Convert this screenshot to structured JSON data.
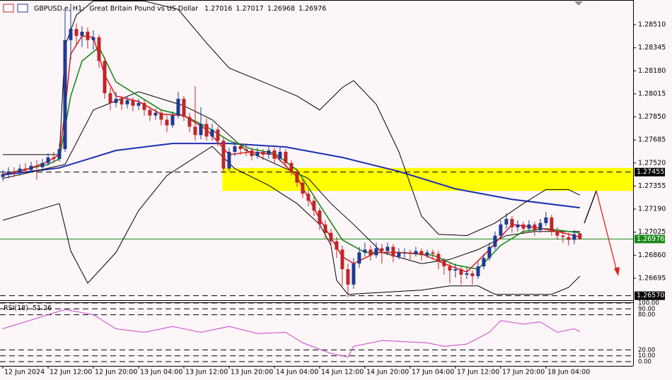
{
  "chart_data": {
    "type": "candlestick",
    "symbol": "GBPUSD.e, H1:",
    "description": "Great Britain Pound vs US Dollar",
    "bull_color": "#1f3a93",
    "bear_color": "#c0262a",
    "candles": [
      [
        1.2742,
        1.2747,
        1.2739,
        1.2744
      ],
      [
        1.2744,
        1.2749,
        1.2741,
        1.2746
      ],
      [
        1.2746,
        1.2749,
        1.2742,
        1.2745
      ],
      [
        1.2745,
        1.2751,
        1.2743,
        1.2748
      ],
      [
        1.2748,
        1.2752,
        1.2744,
        1.2747
      ],
      [
        1.2747,
        1.2753,
        1.2745,
        1.275
      ],
      [
        1.275,
        1.2754,
        1.274,
        1.2749
      ],
      [
        1.2749,
        1.2755,
        1.2746,
        1.2752
      ],
      [
        1.2752,
        1.2759,
        1.275,
        1.2756
      ],
      [
        1.2756,
        1.276,
        1.2752,
        1.2755
      ],
      [
        1.2755,
        1.2766,
        1.2753,
        1.2762
      ],
      [
        1.2762,
        1.2862,
        1.276,
        1.284
      ],
      [
        1.284,
        1.2866,
        1.2826,
        1.2848
      ],
      [
        1.2848,
        1.2852,
        1.2836,
        1.2843
      ],
      [
        1.2843,
        1.285,
        1.2835,
        1.2846
      ],
      [
        1.2846,
        1.2849,
        1.2834,
        1.284
      ],
      [
        1.284,
        1.2847,
        1.2833,
        1.2842
      ],
      [
        1.2842,
        1.2844,
        1.282,
        1.2825
      ],
      [
        1.2825,
        1.2828,
        1.2798,
        1.2802
      ],
      [
        1.2802,
        1.2806,
        1.279,
        1.2795
      ],
      [
        1.2795,
        1.2803,
        1.2792,
        1.2798
      ],
      [
        1.2798,
        1.28,
        1.279,
        1.2794
      ],
      [
        1.2794,
        1.28,
        1.2791,
        1.2797
      ],
      [
        1.2797,
        1.2799,
        1.2789,
        1.2793
      ],
      [
        1.2793,
        1.2798,
        1.279,
        1.2795
      ],
      [
        1.2795,
        1.2797,
        1.2786,
        1.279
      ],
      [
        1.279,
        1.2792,
        1.2782,
        1.2786
      ],
      [
        1.2786,
        1.2791,
        1.2783,
        1.2788
      ],
      [
        1.2788,
        1.279,
        1.2779,
        1.2783
      ],
      [
        1.2783,
        1.2786,
        1.2774,
        1.2779
      ],
      [
        1.2779,
        1.2789,
        1.2777,
        1.2786
      ],
      [
        1.2786,
        1.2803,
        1.2784,
        1.2798
      ],
      [
        1.2798,
        1.28,
        1.2782,
        1.2785
      ],
      [
        1.2785,
        1.2788,
        1.2774,
        1.2778
      ],
      [
        1.2778,
        1.2807,
        1.2768,
        1.2772
      ],
      [
        1.2772,
        1.2792,
        1.2769,
        1.278
      ],
      [
        1.278,
        1.2784,
        1.2768,
        1.2771
      ],
      [
        1.2771,
        1.278,
        1.2768,
        1.2776
      ],
      [
        1.2776,
        1.2778,
        1.2764,
        1.2768
      ],
      [
        1.2768,
        1.277,
        1.2745,
        1.2748
      ],
      [
        1.2748,
        1.2763,
        1.2746,
        1.276
      ],
      [
        1.276,
        1.2767,
        1.2757,
        1.2764
      ],
      [
        1.2764,
        1.2766,
        1.2758,
        1.2762
      ],
      [
        1.2762,
        1.2765,
        1.2757,
        1.2761
      ],
      [
        1.2761,
        1.2763,
        1.2754,
        1.2757
      ],
      [
        1.2757,
        1.2763,
        1.2755,
        1.276
      ],
      [
        1.276,
        1.2762,
        1.2754,
        1.2758
      ],
      [
        1.2758,
        1.2764,
        1.2755,
        1.2761
      ],
      [
        1.2761,
        1.2763,
        1.2752,
        1.2755
      ],
      [
        1.2755,
        1.2763,
        1.2753,
        1.276
      ],
      [
        1.276,
        1.2762,
        1.2749,
        1.2752
      ],
      [
        1.2752,
        1.2754,
        1.2743,
        1.2746
      ],
      [
        1.2746,
        1.2748,
        1.2735,
        1.2738
      ],
      [
        1.2738,
        1.2741,
        1.2727,
        1.273
      ],
      [
        1.273,
        1.2733,
        1.2721,
        1.2725
      ],
      [
        1.2725,
        1.2728,
        1.2714,
        1.2718
      ],
      [
        1.2718,
        1.272,
        1.2704,
        1.2708
      ],
      [
        1.2708,
        1.2711,
        1.2698,
        1.2702
      ],
      [
        1.2702,
        1.2705,
        1.2692,
        1.2696
      ],
      [
        1.2696,
        1.2699,
        1.2684,
        1.269
      ],
      [
        1.269,
        1.2693,
        1.2664,
        1.2676
      ],
      [
        1.2676,
        1.268,
        1.2656,
        1.2665
      ],
      [
        1.2665,
        1.2684,
        1.2662,
        1.268
      ],
      [
        1.268,
        1.2692,
        1.2677,
        1.2688
      ],
      [
        1.2688,
        1.2695,
        1.2685,
        1.269
      ],
      [
        1.269,
        1.2693,
        1.2682,
        1.2686
      ],
      [
        1.2686,
        1.2695,
        1.2684,
        1.2691
      ],
      [
        1.2691,
        1.2694,
        1.268,
        1.2689
      ],
      [
        1.2689,
        1.2695,
        1.2686,
        1.2692
      ],
      [
        1.2692,
        1.2694,
        1.2681,
        1.2685
      ],
      [
        1.2685,
        1.2691,
        1.2683,
        1.2688
      ],
      [
        1.2688,
        1.2691,
        1.2684,
        1.2688
      ],
      [
        1.2688,
        1.269,
        1.2683,
        1.2687
      ],
      [
        1.2687,
        1.2692,
        1.2685,
        1.2689
      ],
      [
        1.2689,
        1.2691,
        1.2682,
        1.2686
      ],
      [
        1.2686,
        1.269,
        1.2684,
        1.2688
      ],
      [
        1.2688,
        1.269,
        1.2683,
        1.2687
      ],
      [
        1.2687,
        1.2689,
        1.2676,
        1.2682
      ],
      [
        1.2682,
        1.2684,
        1.2672,
        1.2678
      ],
      [
        1.2678,
        1.2681,
        1.2666,
        1.2675
      ],
      [
        1.2675,
        1.268,
        1.267,
        1.2676
      ],
      [
        1.2676,
        1.2678,
        1.2665,
        1.2672
      ],
      [
        1.2672,
        1.2677,
        1.2669,
        1.2673
      ],
      [
        1.2673,
        1.2675,
        1.2665,
        1.2671
      ],
      [
        1.2671,
        1.2681,
        1.2669,
        1.2678
      ],
      [
        1.2678,
        1.2687,
        1.2676,
        1.2684
      ],
      [
        1.2684,
        1.2695,
        1.2682,
        1.2692
      ],
      [
        1.2692,
        1.2703,
        1.269,
        1.27
      ],
      [
        1.27,
        1.2711,
        1.2698,
        1.2708
      ],
      [
        1.2708,
        1.2716,
        1.2705,
        1.2712
      ],
      [
        1.2712,
        1.2714,
        1.2702,
        1.2706
      ],
      [
        1.2706,
        1.2711,
        1.2703,
        1.2708
      ],
      [
        1.2708,
        1.271,
        1.2701,
        1.2705
      ],
      [
        1.2705,
        1.2711,
        1.2703,
        1.2708
      ],
      [
        1.2708,
        1.271,
        1.27,
        1.2704
      ],
      [
        1.2704,
        1.2712,
        1.2702,
        1.2709
      ],
      [
        1.2709,
        1.2717,
        1.2707,
        1.2713
      ],
      [
        1.2713,
        1.2715,
        1.27,
        1.2703
      ],
      [
        1.2703,
        1.2706,
        1.2697,
        1.27
      ],
      [
        1.27,
        1.2703,
        1.2695,
        1.2699
      ],
      [
        1.2699,
        1.2702,
        1.2693,
        1.2697
      ],
      [
        1.2697,
        1.2704,
        1.2694,
        1.2701
      ],
      [
        1.27016,
        1.27017,
        1.26968,
        1.26976
      ]
    ],
    "overlays": [
      {
        "color": "#1c2fb0",
        "width": 2,
        "x": [
          0,
          10,
          20,
          30,
          40,
          50,
          60,
          70,
          80,
          90,
          102
        ],
        "values": [
          1.27435,
          1.27485,
          1.2761,
          1.2766,
          1.2766,
          1.27635,
          1.2756,
          1.2746,
          1.27335,
          1.2726,
          1.272
        ]
      },
      {
        "color": "#000000",
        "width": 1,
        "x": [
          0,
          10,
          11,
          13,
          16,
          25,
          31,
          36,
          40,
          46,
          52,
          56,
          60,
          62,
          66,
          70,
          74,
          77,
          82,
          87,
          92,
          96,
          100,
          102
        ],
        "values": [
          1.2758,
          1.2758,
          1.2836,
          1.2858,
          1.2868,
          1.2868,
          1.2862,
          1.2838,
          1.282,
          1.281,
          1.28,
          1.279,
          1.2806,
          1.2811,
          1.2794,
          1.276,
          1.2714,
          1.2701,
          1.27,
          1.2709,
          1.2723,
          1.2733,
          1.2733,
          1.2729
        ]
      },
      {
        "color": "#000000",
        "width": 1,
        "x": [
          0,
          11,
          16,
          24,
          32,
          37,
          43,
          50,
          54,
          58,
          62,
          67,
          74,
          79,
          84,
          89,
          94,
          102
        ],
        "values": [
          1.2741,
          1.2751,
          1.279,
          1.2803,
          1.2793,
          1.2783,
          1.2761,
          1.2748,
          1.2741,
          1.2723,
          1.2708,
          1.2688,
          1.268,
          1.2683,
          1.269,
          1.27,
          1.2703,
          1.2703
        ]
      },
      {
        "color": "#000000",
        "width": 1,
        "x": [
          0,
          10,
          12,
          15,
          20,
          24,
          29,
          37,
          41,
          47,
          52,
          56,
          58,
          59,
          61,
          74,
          79,
          84,
          87,
          97,
          100,
          102
        ],
        "values": [
          1.2711,
          1.2723,
          1.2689,
          1.2666,
          1.2688,
          1.2718,
          1.2743,
          1.2764,
          1.2748,
          1.2736,
          1.2723,
          1.2708,
          1.2693,
          1.2668,
          1.2658,
          1.2661,
          1.2664,
          1.2664,
          1.2658,
          1.2658,
          1.2663,
          1.2671
        ]
      },
      {
        "color": "#1a8a1a",
        "width": 1.6,
        "x": [
          0,
          8,
          10,
          12,
          14,
          17,
          20,
          24,
          28,
          32,
          36,
          40,
          44,
          48,
          52,
          56,
          60,
          64,
          70,
          76,
          80,
          84,
          88,
          92,
          96,
          102
        ],
        "values": [
          1.2744,
          1.2751,
          1.2755,
          1.28,
          1.2825,
          1.2835,
          1.281,
          1.28,
          1.279,
          1.2786,
          1.2778,
          1.2768,
          1.2762,
          1.2759,
          1.2747,
          1.2722,
          1.2697,
          1.2688,
          1.2688,
          1.2686,
          1.2679,
          1.2676,
          1.2693,
          1.2703,
          1.2705,
          1.2702
        ]
      },
      {
        "color": "#e02020",
        "width": 1.6,
        "x": [
          0,
          4,
          8,
          10,
          11,
          12,
          14,
          16,
          18,
          20,
          24,
          28,
          32,
          36,
          40,
          44,
          48,
          52,
          56,
          60,
          62,
          66,
          70,
          74,
          78,
          82,
          86,
          90,
          94,
          98,
          102
        ],
        "values": [
          1.2744,
          1.2747,
          1.2753,
          1.2758,
          1.279,
          1.283,
          1.2843,
          1.2842,
          1.2815,
          1.28,
          1.2796,
          1.2787,
          1.2786,
          1.2776,
          1.2758,
          1.276,
          1.2758,
          1.2742,
          1.2712,
          1.2685,
          1.268,
          1.2688,
          1.2688,
          1.2687,
          1.268,
          1.2674,
          1.269,
          1.2708,
          1.2706,
          1.2703,
          1.2699
        ]
      }
    ],
    "zone": {
      "x0": 38.8,
      "y": [
        1.2732,
        1.27485
      ],
      "color": "#ffff00"
    },
    "levels": [
      1.27455,
      {
        "value": 1.2657,
        "label": "1.26570"
      }
    ],
    "current_color": "#1a8a1a",
    "xlim": [
      -0.5,
      111.4
    ],
    "xticks": [
      {
        "value": 0,
        "label": "12 Jun 2024"
      },
      {
        "value": 8,
        "label": "12 Jun 12:00"
      },
      {
        "value": 16,
        "label": "12 Jun 20:00"
      },
      {
        "value": 24,
        "label": "13 Jun 04:00"
      },
      {
        "value": 32,
        "label": "13 Jun 12:00"
      },
      {
        "value": 40,
        "label": "13 Jun 20:00"
      },
      {
        "value": 48,
        "label": "14 Jun 04:00"
      },
      {
        "value": 56,
        "label": "14 Jun 12:00"
      },
      {
        "value": 64,
        "label": "14 Jun 20:00"
      },
      {
        "value": 72,
        "label": "17 Jun 04:00"
      },
      {
        "value": 80,
        "label": "17 Jun 12:00"
      },
      {
        "value": 88,
        "label": "17 Jun 20:00"
      },
      {
        "value": 96,
        "label": "18 Jun 04:00"
      }
    ],
    "ylim": [
      1.26538,
      1.28677
    ],
    "yticks": [
      {
        "value": 1.2851,
        "label": "1.28510"
      },
      1.28345,
      {
        "value": 1.2818,
        "label": "1.28180"
      },
      1.28015,
      {
        "value": 1.2785,
        "label": "1.27850"
      },
      1.27685,
      {
        "value": 1.2752,
        "label": "1.27520"
      },
      1.27355,
      {
        "value": 1.2719,
        "label": "1.27190"
      },
      1.27025,
      {
        "value": 1.2686,
        "label": "1.26860"
      },
      1.26695
    ],
    "rsi": {
      "label": "RSI(18)",
      "color": "#cc44cc",
      "ylim": [
        0,
        100
      ],
      "yticks": [
        {
          "value": 100,
          "label": "100.00"
        },
        {
          "value": 90,
          "label": "90.00"
        },
        {
          "value": 80,
          "label": "80.00"
        },
        {
          "value": 20,
          "label": "20.00"
        },
        {
          "value": 10,
          "label": "10.00"
        },
        {
          "value": 0,
          "label": "0.00"
        }
      ],
      "x": [
        0,
        11,
        16,
        20,
        25,
        30,
        35,
        40,
        45,
        50,
        53,
        58,
        61,
        62,
        67,
        75,
        78,
        82,
        86,
        88,
        92,
        95,
        98,
        101,
        102
      ],
      "values": [
        56,
        89,
        80,
        56,
        50,
        60,
        50,
        60,
        48,
        50,
        32,
        14,
        8,
        26,
        36,
        32,
        26,
        30,
        50,
        70,
        64,
        68,
        50,
        56,
        51.26
      ]
    }
  }
}
